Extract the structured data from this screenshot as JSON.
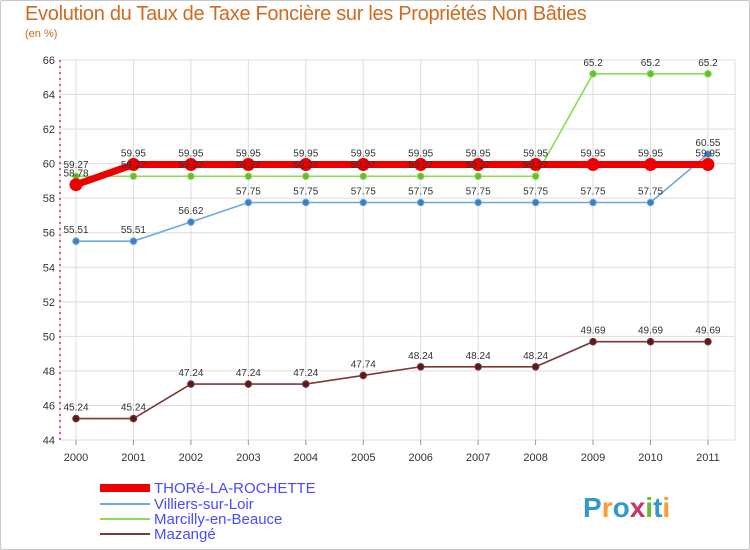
{
  "header": {
    "title": "Evolution du Taux de Taxe Foncière sur les Propriétés Non Bâties",
    "unit": "(en %)"
  },
  "logo": {
    "text": "Proxiti",
    "colors": [
      "#3399cc",
      "#ff9933",
      "#66bb33",
      "#cc3366"
    ]
  },
  "chart_data": {
    "type": "line",
    "title": "Evolution du Taux de Taxe Foncière sur les Propriétés Non Bâties",
    "ylabel": "(en %)",
    "xlabel": "",
    "x": [
      "2000",
      "2001",
      "2002",
      "2003",
      "2004",
      "2005",
      "2006",
      "2007",
      "2008",
      "2009",
      "2010",
      "2011"
    ],
    "ylim": [
      44,
      66
    ],
    "yticks": [
      44,
      46,
      48,
      50,
      52,
      54,
      56,
      58,
      60,
      62,
      64,
      66
    ],
    "grid": true,
    "legend_position": "bottom-left",
    "series": [
      {
        "name": "THORé-LA-ROCHETTE",
        "color": "#ee0000",
        "thick": true,
        "values": [
          58.78,
          59.95,
          59.95,
          59.95,
          59.95,
          59.95,
          59.95,
          59.95,
          59.95,
          59.95,
          59.95,
          59.95
        ],
        "labels": [
          "58.78",
          "59.95",
          "59.95",
          "59.95",
          "59.95",
          "59.95",
          "59.95",
          "59.95",
          "59.95",
          "59.95",
          "59.95",
          "59.95"
        ]
      },
      {
        "name": "Villiers-sur-Loir",
        "color": "#6fa8dc",
        "marker": "#3a7fc4",
        "values": [
          55.51,
          55.51,
          56.62,
          57.75,
          57.75,
          57.75,
          57.75,
          57.75,
          57.75,
          57.75,
          57.75,
          60.55
        ],
        "labels": [
          "55.51",
          "55.51",
          "56.62",
          "57.75",
          "57.75",
          "57.75",
          "57.75",
          "57.75",
          "57.75",
          "57.75",
          "57.75",
          "60.55"
        ]
      },
      {
        "name": "Marcilly-en-Beauce",
        "color": "#88dd55",
        "marker": "#66bb33",
        "values": [
          59.27,
          59.27,
          59.27,
          59.27,
          59.27,
          59.27,
          59.27,
          59.27,
          59.27,
          65.2,
          65.2,
          65.2
        ],
        "labels": [
          "59.27",
          "59.27",
          "59.27",
          "59.27",
          "59.27",
          "59.27",
          "59.27",
          "59.27",
          "59.27",
          "65.2",
          "65.2",
          "65.2"
        ]
      },
      {
        "name": "Mazangé",
        "color": "#7a3a3a",
        "marker": "#5a1a1a",
        "values": [
          45.24,
          45.24,
          47.24,
          47.24,
          47.24,
          47.74,
          48.24,
          48.24,
          48.24,
          49.69,
          49.69,
          49.69
        ],
        "labels": [
          "45.24",
          "45.24",
          "47.24",
          "47.24",
          "47.24",
          "47.74",
          "48.24",
          "48.24",
          "48.24",
          "49.69",
          "49.69",
          "49.69"
        ]
      }
    ]
  }
}
